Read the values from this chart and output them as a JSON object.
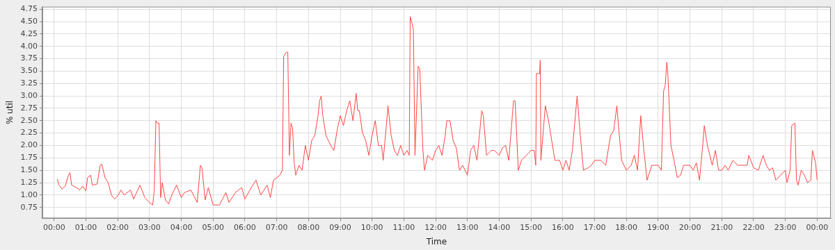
{
  "chart_data": {
    "type": "line",
    "xlabel": "Time",
    "ylabel": "% util",
    "grid": true,
    "legend": false,
    "marker": "none",
    "line_style": "solid",
    "xlim": [
      -0.37,
      24.43
    ],
    "ylim": [
      0.53,
      4.8
    ],
    "xticks": [
      {
        "value": 0,
        "label": "00:00"
      },
      {
        "value": 1,
        "label": "01:00"
      },
      {
        "value": 2,
        "label": "02:00"
      },
      {
        "value": 3,
        "label": "03:00"
      },
      {
        "value": 4,
        "label": "04:00"
      },
      {
        "value": 5,
        "label": "05:00"
      },
      {
        "value": 6,
        "label": "06:00"
      },
      {
        "value": 7,
        "label": "07:00"
      },
      {
        "value": 8,
        "label": "08:00"
      },
      {
        "value": 9,
        "label": "09:00"
      },
      {
        "value": 10,
        "label": "10:00"
      },
      {
        "value": 11,
        "label": "11:00"
      },
      {
        "value": 12,
        "label": "12:00"
      },
      {
        "value": 13,
        "label": "13:00"
      },
      {
        "value": 14,
        "label": "14:00"
      },
      {
        "value": 15,
        "label": "15:00"
      },
      {
        "value": 16,
        "label": "16:00"
      },
      {
        "value": 17,
        "label": "17:00"
      },
      {
        "value": 18,
        "label": "18:00"
      },
      {
        "value": 19,
        "label": "19:00"
      },
      {
        "value": 20,
        "label": "20:00"
      },
      {
        "value": 21,
        "label": "21:00"
      },
      {
        "value": 22,
        "label": "22:00"
      },
      {
        "value": 23,
        "label": "23:00"
      },
      {
        "value": 24,
        "label": "00:00"
      }
    ],
    "yticks": [
      {
        "value": 0.75,
        "label": "0.75"
      },
      {
        "value": 1,
        "label": "1.00"
      },
      {
        "value": 1.25,
        "label": "1.25"
      },
      {
        "value": 1.5,
        "label": "1.50"
      },
      {
        "value": 1.75,
        "label": "1.75"
      },
      {
        "value": 2,
        "label": "2.00"
      },
      {
        "value": 2.25,
        "label": "2.25"
      },
      {
        "value": 2.5,
        "label": "2.50"
      },
      {
        "value": 2.75,
        "label": "2.75"
      },
      {
        "value": 3,
        "label": "3.00"
      },
      {
        "value": 3.25,
        "label": "3.25"
      },
      {
        "value": 3.5,
        "label": "3.50"
      },
      {
        "value": 3.75,
        "label": "3.75"
      },
      {
        "value": 4,
        "label": "4.00"
      },
      {
        "value": 4.25,
        "label": "4.25"
      },
      {
        "value": 4.5,
        "label": "4.50"
      },
      {
        "value": 4.75,
        "label": "4.75"
      }
    ],
    "series": [
      {
        "color": "#ff4444",
        "x": [
          0.1,
          0.15,
          0.25,
          0.35,
          0.45,
          0.5,
          0.55,
          0.7,
          0.8,
          0.9,
          1.0,
          1.05,
          1.15,
          1.2,
          1.35,
          1.45,
          1.5,
          1.6,
          1.7,
          1.8,
          1.9,
          2.0,
          2.1,
          2.2,
          2.4,
          2.5,
          2.7,
          2.85,
          3.0,
          3.1,
          3.15,
          3.2,
          3.25,
          3.3,
          3.35,
          3.4,
          3.5,
          3.6,
          3.7,
          3.85,
          4.0,
          4.1,
          4.3,
          4.5,
          4.6,
          4.65,
          4.75,
          4.85,
          5.0,
          5.2,
          5.4,
          5.5,
          5.7,
          5.9,
          6.0,
          6.2,
          6.35,
          6.5,
          6.7,
          6.8,
          6.9,
          7.1,
          7.18,
          7.22,
          7.3,
          7.35,
          7.4,
          7.45,
          7.5,
          7.55,
          7.6,
          7.7,
          7.8,
          7.9,
          8.0,
          8.1,
          8.2,
          8.3,
          8.35,
          8.4,
          8.45,
          8.55,
          8.7,
          8.8,
          8.9,
          9.0,
          9.1,
          9.2,
          9.3,
          9.4,
          9.5,
          9.55,
          9.6,
          9.7,
          9.8,
          9.9,
          10.0,
          10.1,
          10.2,
          10.3,
          10.35,
          10.45,
          10.5,
          10.6,
          10.7,
          10.8,
          10.9,
          11.0,
          11.1,
          11.17,
          11.2,
          11.3,
          11.35,
          11.45,
          11.5,
          11.6,
          11.65,
          11.75,
          11.9,
          12.0,
          12.1,
          12.2,
          12.3,
          12.35,
          12.45,
          12.55,
          12.65,
          12.75,
          12.85,
          13.0,
          13.1,
          13.2,
          13.3,
          13.45,
          13.5,
          13.6,
          13.75,
          13.85,
          14.0,
          14.1,
          14.2,
          14.3,
          14.45,
          14.5,
          14.6,
          14.7,
          14.85,
          15.0,
          15.1,
          15.15,
          15.17,
          15.27,
          15.29,
          15.31,
          15.45,
          15.55,
          15.65,
          15.75,
          15.9,
          16.0,
          16.1,
          16.2,
          16.3,
          16.45,
          16.55,
          16.65,
          16.8,
          16.9,
          17.0,
          17.2,
          17.35,
          17.5,
          17.6,
          17.7,
          17.75,
          17.85,
          18.0,
          18.15,
          18.25,
          18.35,
          18.45,
          18.55,
          18.65,
          18.8,
          19.0,
          19.1,
          19.17,
          19.22,
          19.27,
          19.3,
          19.4,
          19.5,
          19.6,
          19.7,
          19.8,
          20.0,
          20.1,
          20.2,
          20.3,
          20.4,
          20.45,
          20.55,
          20.7,
          20.8,
          20.9,
          21.0,
          21.1,
          21.2,
          21.35,
          21.5,
          21.6,
          21.8,
          21.85,
          22.0,
          22.15,
          22.3,
          22.4,
          22.5,
          22.6,
          22.7,
          22.85,
          23.0,
          23.05,
          23.15,
          23.2,
          23.3,
          23.35,
          23.4,
          23.5,
          23.6,
          23.7,
          23.8,
          23.85,
          23.95,
          24.0
        ],
        "values": [
          1.32,
          1.2,
          1.12,
          1.18,
          1.4,
          1.45,
          1.2,
          1.15,
          1.1,
          1.18,
          1.08,
          1.35,
          1.4,
          1.2,
          1.22,
          1.6,
          1.62,
          1.35,
          1.25,
          1.0,
          0.92,
          0.98,
          1.1,
          1.0,
          1.1,
          0.92,
          1.2,
          0.95,
          0.85,
          0.8,
          1.1,
          2.5,
          2.45,
          2.45,
          0.95,
          1.25,
          0.9,
          0.82,
          1.0,
          1.2,
          0.95,
          1.05,
          1.1,
          0.85,
          1.6,
          1.55,
          0.9,
          1.15,
          0.8,
          0.8,
          1.05,
          0.85,
          1.05,
          1.15,
          0.92,
          1.15,
          1.3,
          1.0,
          1.2,
          0.95,
          1.3,
          1.4,
          1.5,
          3.8,
          3.88,
          3.88,
          1.8,
          2.45,
          2.35,
          1.65,
          1.4,
          1.6,
          1.5,
          2.0,
          1.7,
          2.1,
          2.2,
          2.6,
          2.9,
          3.0,
          2.6,
          2.2,
          2.0,
          1.9,
          2.3,
          2.6,
          2.4,
          2.7,
          2.9,
          2.5,
          3.05,
          2.7,
          2.7,
          2.25,
          2.1,
          1.8,
          2.2,
          2.5,
          2.0,
          2.0,
          1.7,
          2.4,
          2.8,
          2.2,
          1.9,
          1.8,
          2.0,
          1.8,
          1.9,
          1.8,
          4.6,
          4.35,
          1.8,
          3.6,
          3.55,
          1.9,
          1.5,
          1.8,
          1.7,
          1.9,
          2.0,
          1.8,
          2.2,
          2.5,
          2.5,
          2.1,
          1.95,
          1.5,
          1.6,
          1.4,
          1.9,
          2.0,
          1.7,
          2.7,
          2.6,
          1.8,
          1.9,
          1.9,
          1.8,
          1.95,
          2.0,
          1.7,
          2.9,
          2.9,
          1.5,
          1.7,
          1.8,
          1.9,
          1.9,
          1.6,
          3.45,
          3.45,
          3.72,
          1.7,
          2.8,
          2.5,
          2.1,
          1.7,
          1.7,
          1.5,
          1.7,
          1.5,
          1.9,
          3.0,
          2.2,
          1.5,
          1.55,
          1.6,
          1.7,
          1.7,
          1.6,
          2.2,
          2.3,
          2.8,
          2.4,
          1.7,
          1.5,
          1.6,
          1.8,
          1.5,
          2.6,
          1.9,
          1.3,
          1.6,
          1.6,
          1.5,
          3.1,
          3.2,
          3.68,
          3.5,
          2.0,
          1.7,
          1.35,
          1.4,
          1.6,
          1.6,
          1.5,
          1.65,
          1.3,
          2.0,
          2.4,
          2.0,
          1.6,
          1.9,
          1.5,
          1.5,
          1.6,
          1.5,
          1.7,
          1.6,
          1.6,
          1.6,
          1.8,
          1.55,
          1.5,
          1.8,
          1.6,
          1.5,
          1.55,
          1.3,
          1.4,
          1.5,
          1.25,
          1.5,
          2.4,
          2.45,
          1.3,
          1.2,
          1.5,
          1.4,
          1.25,
          1.3,
          1.9,
          1.65,
          1.3
        ]
      }
    ]
  }
}
